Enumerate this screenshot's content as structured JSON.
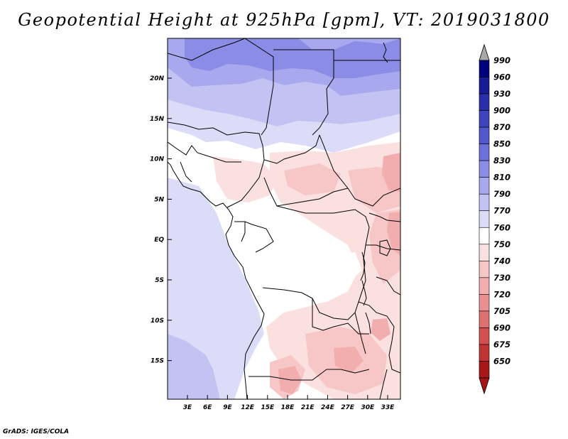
{
  "title": "Geopotential Height at 925hPa [gpm], VT: 2019031800",
  "credit": "GrADS: IGES/COLA",
  "map": {
    "lat_labels": [
      "20N",
      "15N",
      "10N",
      "5N",
      "EQ",
      "5S",
      "10S",
      "15S"
    ],
    "lon_labels": [
      "3E",
      "6E",
      "9E",
      "12E",
      "15E",
      "18E",
      "21E",
      "24E",
      "27E",
      "30E",
      "33E"
    ]
  },
  "colorbar": {
    "levels": [
      {
        "label": "990",
        "color": "#00007f"
      },
      {
        "label": "960",
        "color": "#161b96"
      },
      {
        "label": "930",
        "color": "#2a2eaa"
      },
      {
        "label": "900",
        "color": "#3d44bd"
      },
      {
        "label": "870",
        "color": "#5058cc"
      },
      {
        "label": "850",
        "color": "#6c70da"
      },
      {
        "label": "830",
        "color": "#8a8ce6"
      },
      {
        "label": "810",
        "color": "#a7a8ee"
      },
      {
        "label": "790",
        "color": "#c2c3f3"
      },
      {
        "label": "770",
        "color": "#dcdcf8"
      },
      {
        "label": "760",
        "color": "#ffffff"
      },
      {
        "label": "750",
        "color": "#fbe0e0"
      },
      {
        "label": "740",
        "color": "#f7c7c7"
      },
      {
        "label": "730",
        "color": "#f2aeae"
      },
      {
        "label": "720",
        "color": "#ea8f8f"
      },
      {
        "label": "705",
        "color": "#e07070"
      },
      {
        "label": "690",
        "color": "#d35050"
      },
      {
        "label": "675",
        "color": "#c13434"
      },
      {
        "label": "650",
        "color": "#a91818"
      }
    ],
    "top_arrow_color": "#a8a8a8",
    "bottom_arrow_color": "#a51515"
  }
}
